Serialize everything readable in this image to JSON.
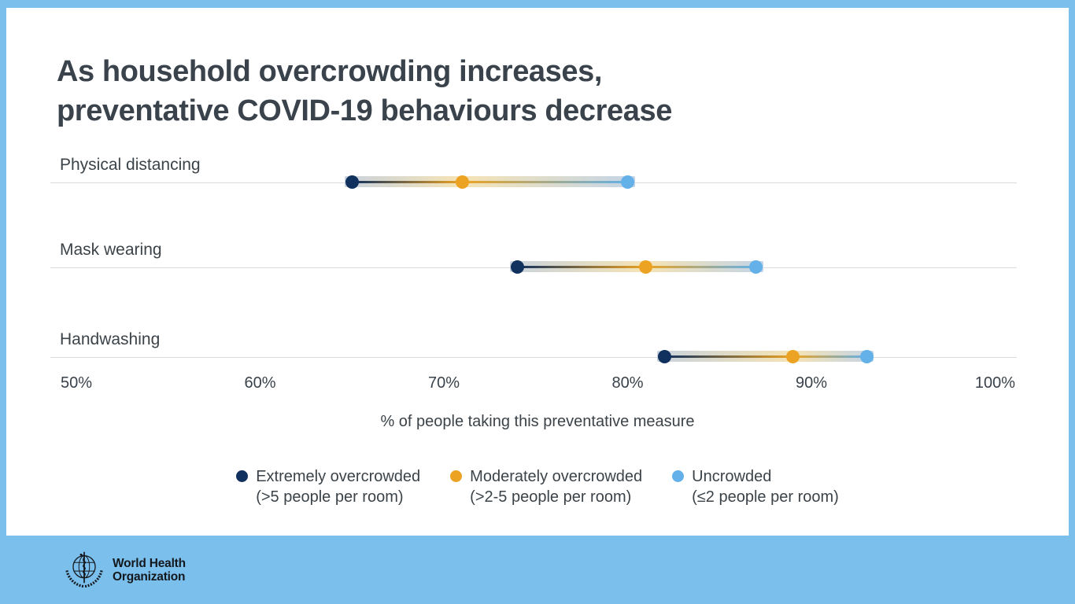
{
  "page": {
    "background_color": "#7bbfec",
    "card_color": "#ffffff",
    "text_color": "#3b4349"
  },
  "title": {
    "line1": "As household overcrowding increases,",
    "line2": "preventative COVID-19 behaviours decrease"
  },
  "chart_data": {
    "type": "dumbbell_dot_plot",
    "title": "As household overcrowding increases, preventative COVID-19 behaviours decrease",
    "categories": [
      "Physical distancing",
      "Mask wearing",
      "Handwashing"
    ],
    "series": [
      {
        "name": "Extremely overcrowded (>5 people per room)",
        "key": "extremely-overcrowded",
        "color": "#10305e",
        "values": [
          65,
          74,
          82
        ]
      },
      {
        "name": "Moderately overcrowded (>2-5 people per room)",
        "key": "moderately-overcrowded",
        "color": "#eca324",
        "values": [
          71,
          81,
          89
        ]
      },
      {
        "name": "Uncrowded (≤2 people per room)",
        "key": "uncrowded",
        "color": "#63b1e8",
        "values": [
          80,
          87,
          93
        ]
      }
    ],
    "xlabel": "% of people taking this preventative measure",
    "x_ticks": [
      50,
      60,
      70,
      80,
      90,
      100
    ],
    "x_tick_labels": [
      "50%",
      "60%",
      "70%",
      "80%",
      "90%",
      "100%"
    ],
    "xlim": [
      50,
      100
    ],
    "grid": "one horizontal line per category",
    "legend_position": "bottom",
    "band_colors": {
      "left": "#c9d2dc",
      "middle": "#f5e3b5",
      "right": "#c3d4e6"
    },
    "gridline_color": "#d9dcde"
  },
  "legend": {
    "items": [
      {
        "label": "Extremely overcrowded",
        "sublabel": "(>5 people per room)",
        "color": "#10305e"
      },
      {
        "label": "Moderately overcrowded",
        "sublabel": "(>2-5 people per room)",
        "color": "#eca324"
      },
      {
        "label": "Uncrowded",
        "sublabel": "(≤2 people per room)",
        "color": "#63b1e8"
      }
    ]
  },
  "footer": {
    "org_line1": "World Health",
    "org_line2": "Organization"
  }
}
